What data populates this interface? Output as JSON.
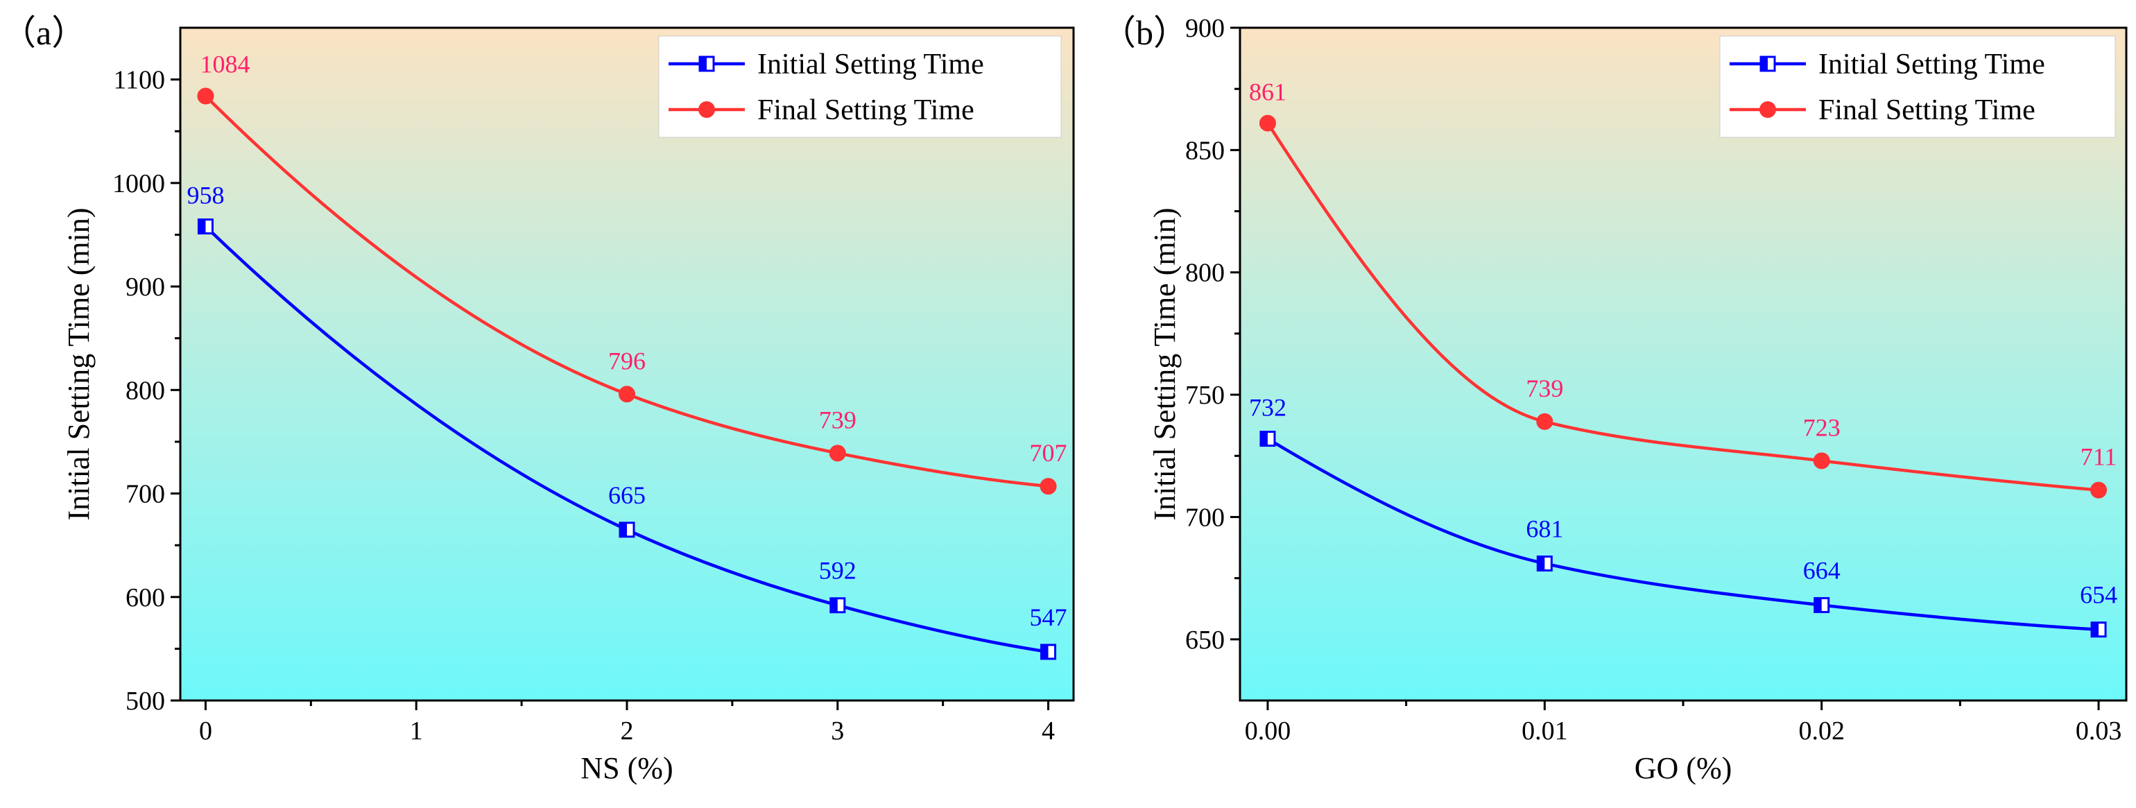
{
  "chart_data": [
    {
      "type": "line",
      "panel_label": "（a）",
      "xlabel": "NS (%)",
      "ylabel": "Initial Setting Time (min)",
      "xlim": [
        -0.12,
        4.12
      ],
      "ylim": [
        500,
        1150
      ],
      "xticks": [
        0,
        1,
        2,
        3,
        4
      ],
      "xtick_labels": [
        "0",
        "1",
        "2",
        "3",
        "4"
      ],
      "yticks": [
        500,
        600,
        700,
        800,
        900,
        1000,
        1100
      ],
      "ytick_labels": [
        "500",
        "600",
        "700",
        "800",
        "900",
        "1000",
        "1100"
      ],
      "legend_position": "top-right",
      "series": [
        {
          "name": "Initial Setting Time",
          "color": "#0000ff",
          "marker": "half-filled-square",
          "x": [
            0,
            2,
            3,
            4
          ],
          "values": [
            958,
            665,
            592,
            547
          ],
          "labels": [
            "958",
            "665",
            "592",
            "547"
          ],
          "label_color": "#0000ff"
        },
        {
          "name": "Final Setting Time",
          "color": "#ff3333",
          "marker": "circle",
          "x": [
            0,
            2,
            3,
            4
          ],
          "values": [
            1084,
            796,
            739,
            707
          ],
          "labels": [
            "1084",
            "796",
            "739",
            "707"
          ],
          "label_color": "#ff1f6a"
        }
      ]
    },
    {
      "type": "line",
      "panel_label": "（b）",
      "xlabel": "GO (%)",
      "ylabel": "Initial Setting Time (min)",
      "xlim": [
        -0.001,
        0.031
      ],
      "ylim": [
        625,
        900
      ],
      "xticks": [
        0,
        0.01,
        0.02,
        0.03
      ],
      "xtick_labels": [
        "0.00",
        "0.01",
        "0.02",
        "0.03"
      ],
      "yticks": [
        650,
        700,
        750,
        800,
        850,
        900
      ],
      "ytick_labels": [
        "650",
        "700",
        "750",
        "800",
        "850",
        "900"
      ],
      "legend_position": "top-right",
      "series": [
        {
          "name": "Initial Setting Time",
          "color": "#0000ff",
          "marker": "half-filled-square",
          "x": [
            0,
            0.01,
            0.02,
            0.03
          ],
          "values": [
            732,
            681,
            664,
            654
          ],
          "labels": [
            "732",
            "681",
            "664",
            "654"
          ],
          "label_color": "#0000ff"
        },
        {
          "name": "Final Setting Time",
          "color": "#ff3333",
          "marker": "circle",
          "x": [
            0,
            0.01,
            0.02,
            0.03
          ],
          "values": [
            861,
            739,
            723,
            711
          ],
          "labels": [
            "861",
            "739",
            "723",
            "711"
          ],
          "label_color": "#ff1f6a"
        }
      ]
    }
  ]
}
